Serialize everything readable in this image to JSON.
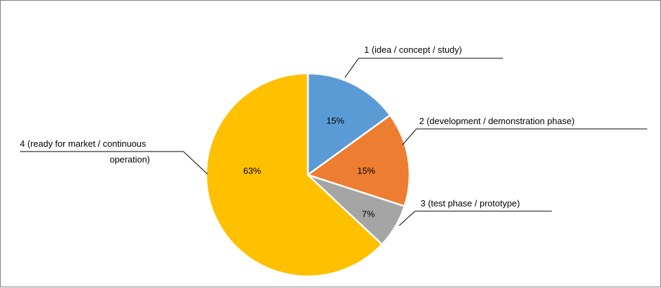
{
  "chart_data": {
    "type": "pie",
    "title": "",
    "slices": [
      {
        "label": "1 (idea / concept / study)",
        "value": 15,
        "value_label": "15%",
        "color": "#5B9BD5"
      },
      {
        "label": "2 (development / demonstration phase)",
        "value": 15,
        "value_label": "15%",
        "color": "#ED7D31"
      },
      {
        "label": "3 (test phase / prototype)",
        "value": 7,
        "value_label": "7%",
        "color": "#A5A5A5"
      },
      {
        "label": [
          "4 (ready for market / continuous",
          "operation)"
        ],
        "value": 63,
        "value_label": "63%",
        "color": "#FFC000"
      }
    ],
    "start_angle_deg": 0,
    "direction": "clockwise",
    "legend": "none",
    "labels": "outside with leader lines"
  }
}
